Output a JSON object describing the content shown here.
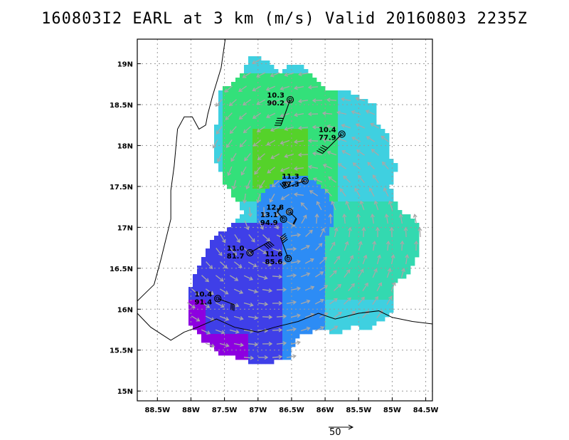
{
  "title": "160803I2 EARL at 3 km (m/s) Valid 20160803 2235Z",
  "colors": {
    "coast": "#000000",
    "grid": "#9a9a9a",
    "arrow": "#a8a8a8",
    "wind_bins": [
      "#8d00e0",
      "#3f3fe8",
      "#2d8cf5",
      "#3fd0e0",
      "#33d9b0",
      "#33e07a",
      "#55d22a"
    ]
  },
  "chart_data": {
    "type": "heatmap",
    "title": "160803I2 EARL at 3 km (m/s) Valid 20160803 2235Z",
    "xlabel": "",
    "ylabel": "",
    "xlim": [
      -88.8,
      -84.4
    ],
    "ylim": [
      14.88,
      19.3
    ],
    "grid": true,
    "x_ticks": [
      "88.5W",
      "88W",
      "87.5W",
      "87W",
      "86.5W",
      "86W",
      "85.5W",
      "85W",
      "84.5W"
    ],
    "y_ticks": [
      "19N",
      "18.5N",
      "18N",
      "17.5N",
      "17N",
      "16.5N",
      "16N",
      "15.5N",
      "15N"
    ],
    "storm_center": {
      "lon": -86.45,
      "lat": 17.15
    },
    "observations": [
      {
        "lon": -86.52,
        "lat": 18.56,
        "speed": "10.3",
        "pressure": "90.2",
        "barb_dir": 110,
        "barb_len": 0.55
      },
      {
        "lon": -85.75,
        "lat": 18.14,
        "speed": "10.4",
        "pressure": "77.9",
        "barb_dir": 135,
        "barb_len": 0.55
      },
      {
        "lon": -86.3,
        "lat": 17.57,
        "speed": "11.3",
        "pressure": "97.3",
        "barb_dir": 160,
        "barb_len": 0.45
      },
      {
        "lon": -86.53,
        "lat": 17.19,
        "speed": "12.8",
        "pressure": "",
        "barb_dir": 45,
        "barb_len": 0.2
      },
      {
        "lon": -86.62,
        "lat": 17.1,
        "speed": "13.1",
        "pressure": "94.9",
        "barb_dir": 230,
        "barb_len": 0.2
      },
      {
        "lon": -87.12,
        "lat": 16.69,
        "speed": "11.0",
        "pressure": "81.7",
        "barb_dir": 330,
        "barb_len": 0.45
      },
      {
        "lon": -86.55,
        "lat": 16.62,
        "speed": "11.6",
        "pressure": "85.6",
        "barb_dir": 250,
        "barb_len": 0.45
      },
      {
        "lon": -87.6,
        "lat": 16.13,
        "speed": "10.4",
        "pressure": "91.4",
        "barb_dir": 20,
        "barb_len": 0.35
      }
    ],
    "reference_vector": "50"
  }
}
